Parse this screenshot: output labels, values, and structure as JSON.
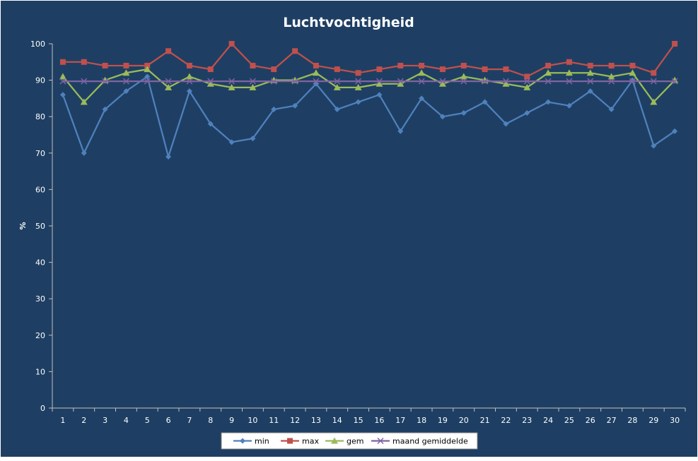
{
  "colors": {
    "background": "#1e3f63",
    "axis": "#c0c0c0",
    "text": "#ffffff",
    "legend_bg": "#ffffff"
  },
  "chart_data": {
    "type": "line",
    "title": "Luchtvochtigheid",
    "xlabel": "",
    "ylabel": "%",
    "x": [
      1,
      2,
      3,
      4,
      5,
      6,
      7,
      8,
      9,
      10,
      11,
      12,
      13,
      14,
      15,
      16,
      17,
      18,
      19,
      20,
      21,
      22,
      23,
      24,
      25,
      26,
      27,
      28,
      29,
      30
    ],
    "ylim": [
      0,
      100
    ],
    "yticks": [
      0,
      10,
      20,
      30,
      40,
      50,
      60,
      70,
      80,
      90,
      100
    ],
    "grid": false,
    "legend_position": "bottom",
    "series": [
      {
        "name": "min",
        "color": "#4f81bd",
        "marker": "diamond",
        "values": [
          86,
          70,
          82,
          87,
          91,
          69,
          87,
          78,
          73,
          74,
          82,
          83,
          89,
          82,
          84,
          86,
          76,
          85,
          80,
          81,
          84,
          78,
          81,
          84,
          83,
          87,
          82,
          90,
          72,
          76
        ]
      },
      {
        "name": "max",
        "color": "#c0504d",
        "marker": "square",
        "values": [
          95,
          95,
          94,
          94,
          94,
          98,
          94,
          93,
          100,
          94,
          93,
          98,
          94,
          93,
          92,
          93,
          94,
          94,
          93,
          94,
          93,
          93,
          91,
          94,
          95,
          94,
          94,
          94,
          92,
          100
        ]
      },
      {
        "name": "gem",
        "color": "#9bbb59",
        "marker": "triangle",
        "values": [
          91,
          84,
          90,
          92,
          93,
          88,
          91,
          89,
          88,
          88,
          90,
          90,
          92,
          88,
          88,
          89,
          89,
          92,
          89,
          91,
          90,
          89,
          88,
          92,
          92,
          92,
          91,
          92,
          84,
          90
        ]
      },
      {
        "name": "maand gemiddelde",
        "color": "#8064a2",
        "marker": "x",
        "values": [
          89.7,
          89.7,
          89.7,
          89.7,
          89.7,
          89.7,
          89.7,
          89.7,
          89.7,
          89.7,
          89.7,
          89.7,
          89.7,
          89.7,
          89.7,
          89.7,
          89.7,
          89.7,
          89.7,
          89.7,
          89.7,
          89.7,
          89.7,
          89.7,
          89.7,
          89.7,
          89.7,
          89.7,
          89.7,
          89.7
        ]
      }
    ]
  }
}
